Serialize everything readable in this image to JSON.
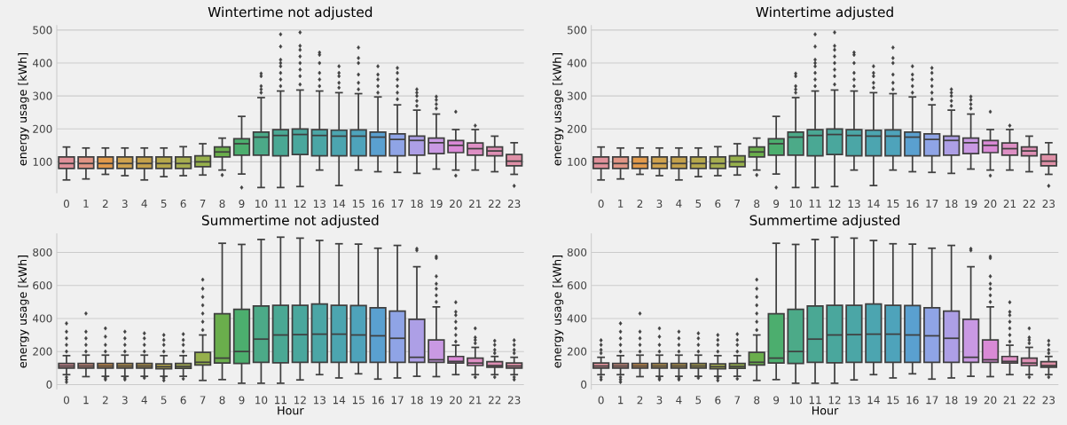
{
  "chart_data": [
    {
      "type": "box",
      "title": "Wintertime not adjusted",
      "ylabel": "energy usage [kWh]",
      "grid": "y",
      "marker": "diamond",
      "categories": [
        "0",
        "1",
        "2",
        "3",
        "4",
        "5",
        "6",
        "7",
        "8",
        "9",
        "10",
        "11",
        "12",
        "13",
        "14",
        "15",
        "16",
        "17",
        "18",
        "19",
        "20",
        "21",
        "22",
        "23"
      ],
      "colors": [
        "#e0919a",
        "#e09585",
        "#e29a4c",
        "#cfa24f",
        "#c4a14c",
        "#b6a84c",
        "#a6ad50",
        "#96b04c",
        "#6aae4c",
        "#4cae6e",
        "#4caa88",
        "#4aa894",
        "#4aa79d",
        "#4ba6a6",
        "#4ca5b0",
        "#4ea3bb",
        "#5aa0d0",
        "#8fa4e6",
        "#ad9fe6",
        "#c999e3",
        "#d98ad6",
        "#de8fc4",
        "#de8fb4",
        "#df90a7"
      ],
      "ylim": [
        5,
        515
      ],
      "yticks": [
        100,
        200,
        300,
        400,
        500
      ],
      "boxes": [
        {
          "low": 45,
          "q1": 80,
          "median": 95,
          "q3": 115,
          "high": 145
        },
        {
          "low": 48,
          "q1": 80,
          "median": 95,
          "q3": 115,
          "high": 142
        },
        {
          "low": 62,
          "q1": 80,
          "median": 95,
          "q3": 115,
          "high": 142
        },
        {
          "low": 58,
          "q1": 80,
          "median": 95,
          "q3": 115,
          "high": 142
        },
        {
          "low": 45,
          "q1": 80,
          "median": 95,
          "q3": 115,
          "high": 142
        },
        {
          "low": 55,
          "q1": 80,
          "median": 95,
          "q3": 115,
          "high": 142
        },
        {
          "low": 58,
          "q1": 80,
          "median": 95,
          "q3": 115,
          "high": 146
        },
        {
          "low": 60,
          "q1": 85,
          "median": 100,
          "q3": 118,
          "high": 155
        },
        {
          "low": 75,
          "q1": 115,
          "median": 130,
          "q3": 145,
          "high": 172,
          "outliers": [
            60
          ]
        },
        {
          "low": 63,
          "q1": 120,
          "median": 155,
          "q3": 170,
          "high": 238,
          "outliers": [
            22
          ]
        },
        {
          "low": 22,
          "q1": 120,
          "median": 175,
          "q3": 190,
          "high": 295,
          "outliers": [
            310,
            320,
            330,
            360,
            368
          ]
        },
        {
          "low": 22,
          "q1": 118,
          "median": 180,
          "q3": 198,
          "high": 315,
          "outliers": [
            330,
            350,
            370,
            390,
            400,
            410,
            450,
            487
          ]
        },
        {
          "low": 25,
          "q1": 122,
          "median": 183,
          "q3": 200,
          "high": 318,
          "outliers": [
            335,
            360,
            380,
            400,
            420,
            440,
            452,
            493
          ]
        },
        {
          "low": 75,
          "q1": 118,
          "median": 180,
          "q3": 198,
          "high": 315,
          "outliers": [
            330,
            350,
            370,
            400,
            425,
            432
          ]
        },
        {
          "low": 28,
          "q1": 118,
          "median": 178,
          "q3": 196,
          "high": 310,
          "outliers": [
            325,
            340,
            360,
            370,
            390
          ]
        },
        {
          "low": 75,
          "q1": 118,
          "median": 178,
          "q3": 197,
          "high": 307,
          "outliers": [
            320,
            340,
            365,
            400,
            415,
            447
          ]
        },
        {
          "low": 70,
          "q1": 118,
          "median": 175,
          "q3": 190,
          "high": 297,
          "outliers": [
            310,
            330,
            350,
            365,
            390
          ]
        },
        {
          "low": 68,
          "q1": 118,
          "median": 168,
          "q3": 185,
          "high": 273,
          "outliers": [
            290,
            310,
            330,
            350,
            370,
            385
          ]
        },
        {
          "low": 65,
          "q1": 120,
          "median": 165,
          "q3": 178,
          "high": 257,
          "outliers": [
            270,
            285,
            300,
            310,
            320
          ]
        },
        {
          "low": 78,
          "q1": 125,
          "median": 158,
          "q3": 172,
          "high": 245,
          "outliers": [
            262,
            275,
            288,
            298
          ]
        },
        {
          "low": 75,
          "q1": 128,
          "median": 150,
          "q3": 165,
          "high": 198,
          "outliers": [
            58,
            252
          ]
        },
        {
          "low": 75,
          "q1": 120,
          "median": 140,
          "q3": 157,
          "high": 198,
          "outliers": [
            210
          ]
        },
        {
          "low": 70,
          "q1": 118,
          "median": 133,
          "q3": 145,
          "high": 178
        },
        {
          "low": 62,
          "q1": 88,
          "median": 102,
          "q3": 122,
          "high": 158,
          "outliers": [
            27
          ]
        }
      ]
    },
    {
      "type": "box",
      "title": "Wintertime adjusted",
      "ylabel": "energy usage [kWh]",
      "grid": "y",
      "marker": "diamond",
      "categories": [
        "0",
        "1",
        "2",
        "3",
        "4",
        "5",
        "6",
        "7",
        "8",
        "9",
        "10",
        "11",
        "12",
        "13",
        "14",
        "15",
        "16",
        "17",
        "18",
        "19",
        "20",
        "21",
        "22",
        "23"
      ],
      "colors": [
        "#e0919a",
        "#e09585",
        "#e29a4c",
        "#cfa24f",
        "#c4a14c",
        "#b6a84c",
        "#a6ad50",
        "#96b04c",
        "#6aae4c",
        "#4cae6e",
        "#4caa88",
        "#4aa894",
        "#4aa79d",
        "#4ba6a6",
        "#4ca5b0",
        "#4ea3bb",
        "#5aa0d0",
        "#8fa4e6",
        "#ad9fe6",
        "#c999e3",
        "#d98ad6",
        "#de8fc4",
        "#de8fb4",
        "#df90a7"
      ],
      "ylim": [
        5,
        515
      ],
      "yticks": [
        100,
        200,
        300,
        400,
        500
      ],
      "boxes": [
        {
          "low": 45,
          "q1": 80,
          "median": 95,
          "q3": 115,
          "high": 145
        },
        {
          "low": 48,
          "q1": 80,
          "median": 95,
          "q3": 115,
          "high": 142
        },
        {
          "low": 62,
          "q1": 80,
          "median": 95,
          "q3": 115,
          "high": 142
        },
        {
          "low": 58,
          "q1": 80,
          "median": 95,
          "q3": 115,
          "high": 142
        },
        {
          "low": 45,
          "q1": 80,
          "median": 95,
          "q3": 115,
          "high": 142
        },
        {
          "low": 55,
          "q1": 80,
          "median": 95,
          "q3": 115,
          "high": 142
        },
        {
          "low": 58,
          "q1": 80,
          "median": 95,
          "q3": 115,
          "high": 146
        },
        {
          "low": 60,
          "q1": 85,
          "median": 100,
          "q3": 118,
          "high": 155
        },
        {
          "low": 75,
          "q1": 115,
          "median": 130,
          "q3": 145,
          "high": 172,
          "outliers": [
            60
          ]
        },
        {
          "low": 63,
          "q1": 120,
          "median": 155,
          "q3": 170,
          "high": 238,
          "outliers": [
            22
          ]
        },
        {
          "low": 22,
          "q1": 120,
          "median": 175,
          "q3": 190,
          "high": 295,
          "outliers": [
            310,
            320,
            330,
            360,
            368
          ]
        },
        {
          "low": 22,
          "q1": 118,
          "median": 180,
          "q3": 198,
          "high": 315,
          "outliers": [
            330,
            350,
            370,
            390,
            400,
            410,
            450,
            487
          ]
        },
        {
          "low": 25,
          "q1": 122,
          "median": 183,
          "q3": 200,
          "high": 318,
          "outliers": [
            335,
            360,
            380,
            400,
            420,
            440,
            452,
            493
          ]
        },
        {
          "low": 75,
          "q1": 118,
          "median": 180,
          "q3": 198,
          "high": 315,
          "outliers": [
            330,
            350,
            370,
            400,
            425,
            432
          ]
        },
        {
          "low": 28,
          "q1": 118,
          "median": 178,
          "q3": 196,
          "high": 310,
          "outliers": [
            325,
            340,
            360,
            370,
            390
          ]
        },
        {
          "low": 75,
          "q1": 118,
          "median": 178,
          "q3": 197,
          "high": 307,
          "outliers": [
            320,
            340,
            365,
            400,
            415,
            447
          ]
        },
        {
          "low": 70,
          "q1": 118,
          "median": 175,
          "q3": 190,
          "high": 297,
          "outliers": [
            310,
            330,
            350,
            365,
            390
          ]
        },
        {
          "low": 68,
          "q1": 118,
          "median": 168,
          "q3": 185,
          "high": 273,
          "outliers": [
            290,
            310,
            330,
            350,
            370,
            385
          ]
        },
        {
          "low": 65,
          "q1": 120,
          "median": 165,
          "q3": 178,
          "high": 257,
          "outliers": [
            270,
            285,
            300,
            310,
            320
          ]
        },
        {
          "low": 78,
          "q1": 125,
          "median": 158,
          "q3": 172,
          "high": 245,
          "outliers": [
            262,
            275,
            288,
            298
          ]
        },
        {
          "low": 75,
          "q1": 128,
          "median": 150,
          "q3": 165,
          "high": 198,
          "outliers": [
            58,
            252
          ]
        },
        {
          "low": 75,
          "q1": 120,
          "median": 140,
          "q3": 157,
          "high": 198,
          "outliers": [
            210
          ]
        },
        {
          "low": 70,
          "q1": 118,
          "median": 133,
          "q3": 145,
          "high": 178
        },
        {
          "low": 62,
          "q1": 88,
          "median": 102,
          "q3": 122,
          "high": 158,
          "outliers": [
            27
          ]
        }
      ]
    },
    {
      "type": "box",
      "title": "Summertime not adjusted",
      "xlabel": "Hour",
      "ylabel": "energy usage [kWh]",
      "grid": "y",
      "marker": "diamond",
      "categories": [
        "0",
        "1",
        "2",
        "3",
        "4",
        "5",
        "6",
        "7",
        "8",
        "9",
        "10",
        "11",
        "12",
        "13",
        "14",
        "15",
        "16",
        "17",
        "18",
        "19",
        "20",
        "21",
        "22",
        "23"
      ],
      "colors": [
        "#e0919a",
        "#e09585",
        "#e29a4c",
        "#cfa24f",
        "#c4a14c",
        "#b6a84c",
        "#a6ad50",
        "#96b04c",
        "#6aae4c",
        "#4cae6e",
        "#4caa88",
        "#4aa894",
        "#4aa79d",
        "#4ba6a6",
        "#4ca5b0",
        "#4ea3bb",
        "#5aa0d0",
        "#8fa4e6",
        "#ad9fe6",
        "#c999e3",
        "#d98ad6",
        "#de8fc4",
        "#de8fb4",
        "#df90a7"
      ],
      "ylim": [
        -30,
        915
      ],
      "yticks": [
        0,
        200,
        400,
        600,
        800
      ],
      "boxes": [
        {
          "low": 60,
          "q1": 100,
          "median": 112,
          "q3": 128,
          "high": 175,
          "outliers": [
            15,
            30,
            45,
            200,
            240,
            280,
            320,
            370
          ]
        },
        {
          "low": 48,
          "q1": 100,
          "median": 112,
          "q3": 128,
          "high": 178,
          "outliers": [
            200,
            240,
            280,
            320,
            430
          ]
        },
        {
          "low": 50,
          "q1": 100,
          "median": 112,
          "q3": 128,
          "high": 178,
          "outliers": [
            30,
            40,
            200,
            240,
            290,
            340
          ]
        },
        {
          "low": 50,
          "q1": 100,
          "median": 112,
          "q3": 128,
          "high": 178,
          "outliers": [
            30,
            40,
            200,
            240,
            280,
            320
          ]
        },
        {
          "low": 50,
          "q1": 100,
          "median": 112,
          "q3": 128,
          "high": 178,
          "outliers": [
            40,
            200,
            240,
            280,
            310
          ]
        },
        {
          "low": 50,
          "q1": 95,
          "median": 108,
          "q3": 125,
          "high": 175,
          "outliers": [
            25,
            40,
            200,
            240,
            270,
            300
          ]
        },
        {
          "low": 50,
          "q1": 98,
          "median": 110,
          "q3": 128,
          "high": 175,
          "outliers": [
            35,
            200,
            240,
            270,
            305
          ]
        },
        {
          "low": 25,
          "q1": 118,
          "median": 135,
          "q3": 195,
          "high": 300,
          "outliers": [
            330,
            380,
            430,
            480,
            530,
            580,
            635
          ]
        },
        {
          "low": 30,
          "q1": 130,
          "median": 160,
          "q3": 428,
          "high": 855
        },
        {
          "low": 8,
          "q1": 128,
          "median": 200,
          "q3": 455,
          "high": 848
        },
        {
          "low": 8,
          "q1": 135,
          "median": 275,
          "q3": 475,
          "high": 878
        },
        {
          "low": 8,
          "q1": 132,
          "median": 300,
          "q3": 480,
          "high": 892
        },
        {
          "low": 28,
          "q1": 135,
          "median": 302,
          "q3": 480,
          "high": 886
        },
        {
          "low": 60,
          "q1": 135,
          "median": 305,
          "q3": 488,
          "high": 872
        },
        {
          "low": 40,
          "q1": 135,
          "median": 305,
          "q3": 480,
          "high": 852
        },
        {
          "low": 65,
          "q1": 135,
          "median": 300,
          "q3": 478,
          "high": 850
        },
        {
          "low": 33,
          "q1": 135,
          "median": 295,
          "q3": 465,
          "high": 825
        },
        {
          "low": 40,
          "q1": 135,
          "median": 280,
          "q3": 445,
          "high": 842
        },
        {
          "low": 50,
          "q1": 135,
          "median": 165,
          "q3": 395,
          "high": 713,
          "outliers": [
            812,
            822
          ]
        },
        {
          "low": 48,
          "q1": 135,
          "median": 150,
          "q3": 270,
          "high": 470,
          "outliers": [
            500,
            540,
            580,
            610,
            655,
            765,
            775
          ]
        },
        {
          "low": 60,
          "q1": 130,
          "median": 140,
          "q3": 170,
          "high": 238,
          "outliers": [
            260,
            300,
            340,
            380,
            420,
            440,
            498
          ]
        },
        {
          "low": 60,
          "q1": 115,
          "median": 130,
          "q3": 160,
          "high": 225,
          "outliers": [
            45,
            250,
            270,
            285,
            340
          ]
        },
        {
          "low": 60,
          "q1": 105,
          "median": 115,
          "q3": 138,
          "high": 170,
          "outliers": [
            45,
            190,
            210,
            240,
            265
          ]
        },
        {
          "low": 60,
          "q1": 100,
          "median": 112,
          "q3": 130,
          "high": 165,
          "outliers": [
            30,
            45,
            190,
            210,
            240,
            268
          ]
        }
      ]
    },
    {
      "type": "box",
      "title": "Summertime adjusted",
      "xlabel": "Hour",
      "ylabel": "energy usage [kWh]",
      "grid": "y",
      "marker": "diamond",
      "categories": [
        "0",
        "1",
        "2",
        "3",
        "4",
        "5",
        "6",
        "7",
        "8",
        "9",
        "10",
        "11",
        "12",
        "13",
        "14",
        "15",
        "16",
        "17",
        "18",
        "19",
        "20",
        "21",
        "22",
        "23"
      ],
      "colors": [
        "#e0919a",
        "#e09585",
        "#e29a4c",
        "#cfa24f",
        "#c4a14c",
        "#b6a84c",
        "#a6ad50",
        "#96b04c",
        "#6aae4c",
        "#4cae6e",
        "#4caa88",
        "#4aa894",
        "#4aa79d",
        "#4ba6a6",
        "#4ca5b0",
        "#4ea3bb",
        "#5aa0d0",
        "#8fa4e6",
        "#ad9fe6",
        "#c999e3",
        "#d98ad6",
        "#de8fc4",
        "#de8fb4",
        "#df90a7"
      ],
      "ylim": [
        -30,
        915
      ],
      "yticks": [
        0,
        200,
        400,
        600,
        800
      ],
      "boxes": [
        {
          "low": 60,
          "q1": 100,
          "median": 112,
          "q3": 130,
          "high": 165,
          "outliers": [
            30,
            45,
            190,
            210,
            240,
            268
          ]
        },
        {
          "low": 60,
          "q1": 100,
          "median": 112,
          "q3": 128,
          "high": 175,
          "outliers": [
            15,
            30,
            45,
            200,
            240,
            280,
            320,
            370
          ]
        },
        {
          "low": 48,
          "q1": 100,
          "median": 112,
          "q3": 128,
          "high": 178,
          "outliers": [
            200,
            240,
            280,
            320,
            430
          ]
        },
        {
          "low": 50,
          "q1": 100,
          "median": 112,
          "q3": 128,
          "high": 178,
          "outliers": [
            30,
            40,
            200,
            240,
            290,
            340
          ]
        },
        {
          "low": 50,
          "q1": 100,
          "median": 112,
          "q3": 128,
          "high": 178,
          "outliers": [
            30,
            40,
            200,
            240,
            280,
            320
          ]
        },
        {
          "low": 50,
          "q1": 100,
          "median": 112,
          "q3": 128,
          "high": 178,
          "outliers": [
            40,
            200,
            240,
            280,
            310
          ]
        },
        {
          "low": 50,
          "q1": 95,
          "median": 108,
          "q3": 125,
          "high": 175,
          "outliers": [
            25,
            40,
            200,
            240,
            270,
            300
          ]
        },
        {
          "low": 50,
          "q1": 98,
          "median": 110,
          "q3": 128,
          "high": 175,
          "outliers": [
            35,
            200,
            240,
            270,
            305
          ]
        },
        {
          "low": 25,
          "q1": 118,
          "median": 135,
          "q3": 195,
          "high": 300,
          "outliers": [
            330,
            380,
            430,
            480,
            530,
            580,
            635
          ]
        },
        {
          "low": 30,
          "q1": 130,
          "median": 160,
          "q3": 428,
          "high": 855
        },
        {
          "low": 8,
          "q1": 128,
          "median": 200,
          "q3": 455,
          "high": 848
        },
        {
          "low": 8,
          "q1": 135,
          "median": 275,
          "q3": 475,
          "high": 878
        },
        {
          "low": 8,
          "q1": 132,
          "median": 300,
          "q3": 480,
          "high": 892
        },
        {
          "low": 28,
          "q1": 135,
          "median": 302,
          "q3": 480,
          "high": 886
        },
        {
          "low": 60,
          "q1": 135,
          "median": 305,
          "q3": 488,
          "high": 872
        },
        {
          "low": 40,
          "q1": 135,
          "median": 305,
          "q3": 480,
          "high": 852
        },
        {
          "low": 65,
          "q1": 135,
          "median": 300,
          "q3": 478,
          "high": 850
        },
        {
          "low": 33,
          "q1": 135,
          "median": 295,
          "q3": 465,
          "high": 825
        },
        {
          "low": 40,
          "q1": 135,
          "median": 280,
          "q3": 445,
          "high": 842
        },
        {
          "low": 50,
          "q1": 135,
          "median": 165,
          "q3": 395,
          "high": 713,
          "outliers": [
            812,
            822
          ]
        },
        {
          "low": 48,
          "q1": 135,
          "median": 150,
          "q3": 270,
          "high": 470,
          "outliers": [
            500,
            540,
            580,
            610,
            655,
            765,
            775
          ]
        },
        {
          "low": 60,
          "q1": 130,
          "median": 140,
          "q3": 170,
          "high": 238,
          "outliers": [
            260,
            300,
            340,
            380,
            420,
            440,
            498
          ]
        },
        {
          "low": 60,
          "q1": 115,
          "median": 130,
          "q3": 160,
          "high": 225,
          "outliers": [
            45,
            250,
            270,
            285,
            340
          ]
        },
        {
          "low": 60,
          "q1": 105,
          "median": 115,
          "q3": 138,
          "high": 170,
          "outliers": [
            45,
            190,
            210,
            240,
            265
          ]
        }
      ]
    }
  ]
}
